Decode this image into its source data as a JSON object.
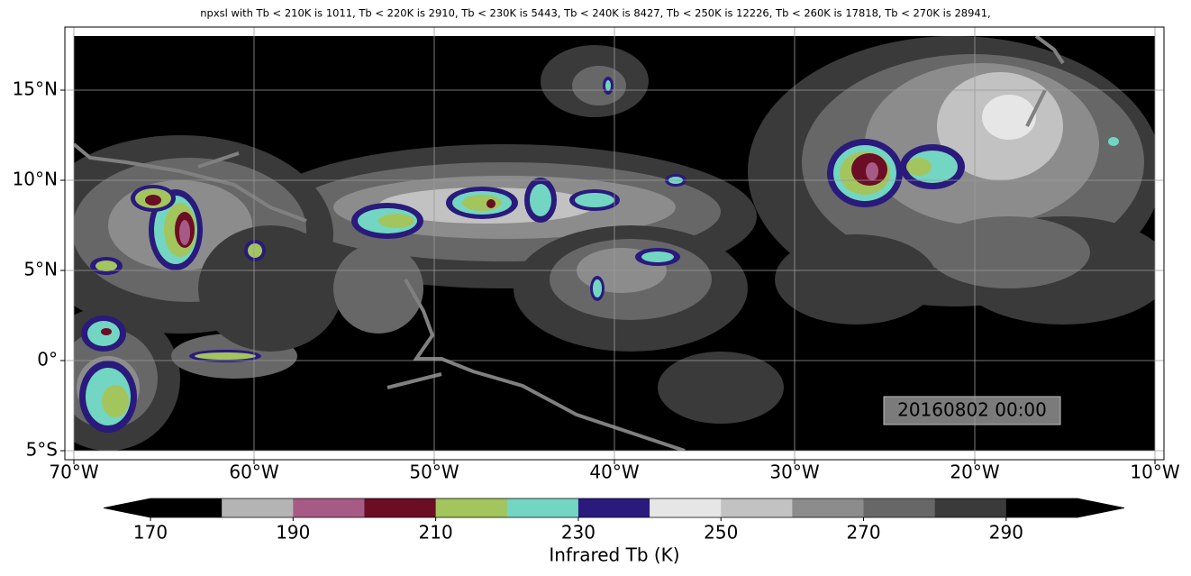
{
  "map": {
    "title": "npxsl with Tb < 210K is 1011,  Tb < 220K is 2910,  Tb < 230K is 5443,  Tb < 240K is 8427,  Tb < 250K is 12226,  Tb < 260K is 17818,  Tb < 270K is 28941,",
    "xlim": [
      -70.5,
      -9.5
    ],
    "ylim": [
      -5.5,
      18.5
    ],
    "extent": [
      -70,
      -10,
      -5,
      18
    ],
    "xticks": [
      {
        "value": -70,
        "label": "70°W"
      },
      {
        "value": -60,
        "label": "60°W"
      },
      {
        "value": -50,
        "label": "50°W"
      },
      {
        "value": -40,
        "label": "40°W"
      },
      {
        "value": -30,
        "label": "30°W"
      },
      {
        "value": -20,
        "label": "20°W"
      },
      {
        "value": -10,
        "label": "10°W"
      }
    ],
    "yticks": [
      {
        "value": -5,
        "label": "5°S"
      },
      {
        "value": 0,
        "label": "0°"
      },
      {
        "value": 5,
        "label": "5°N"
      },
      {
        "value": 10,
        "label": "10°N"
      },
      {
        "value": 15,
        "label": "15°N"
      }
    ],
    "grid": true,
    "timestamp": "20160802 00:00"
  },
  "colorbar": {
    "label": "Infrared Tb (K)",
    "bounds": [
      170,
      180,
      190,
      200,
      210,
      220,
      230,
      240,
      250,
      260,
      270,
      280,
      290,
      300
    ],
    "colors": [
      "#000000",
      "#b4b4b4",
      "#a85a86",
      "#6b0d24",
      "#a3c55e",
      "#72d6c2",
      "#2a1a7c",
      "#e6e6e6",
      "#c2c2c2",
      "#8c8c8c",
      "#676767",
      "#3a3a3a",
      "#000000"
    ],
    "under_color": "#000000",
    "over_color": "#000000",
    "ticks": [
      170,
      190,
      210,
      230,
      250,
      270,
      290
    ]
  }
}
